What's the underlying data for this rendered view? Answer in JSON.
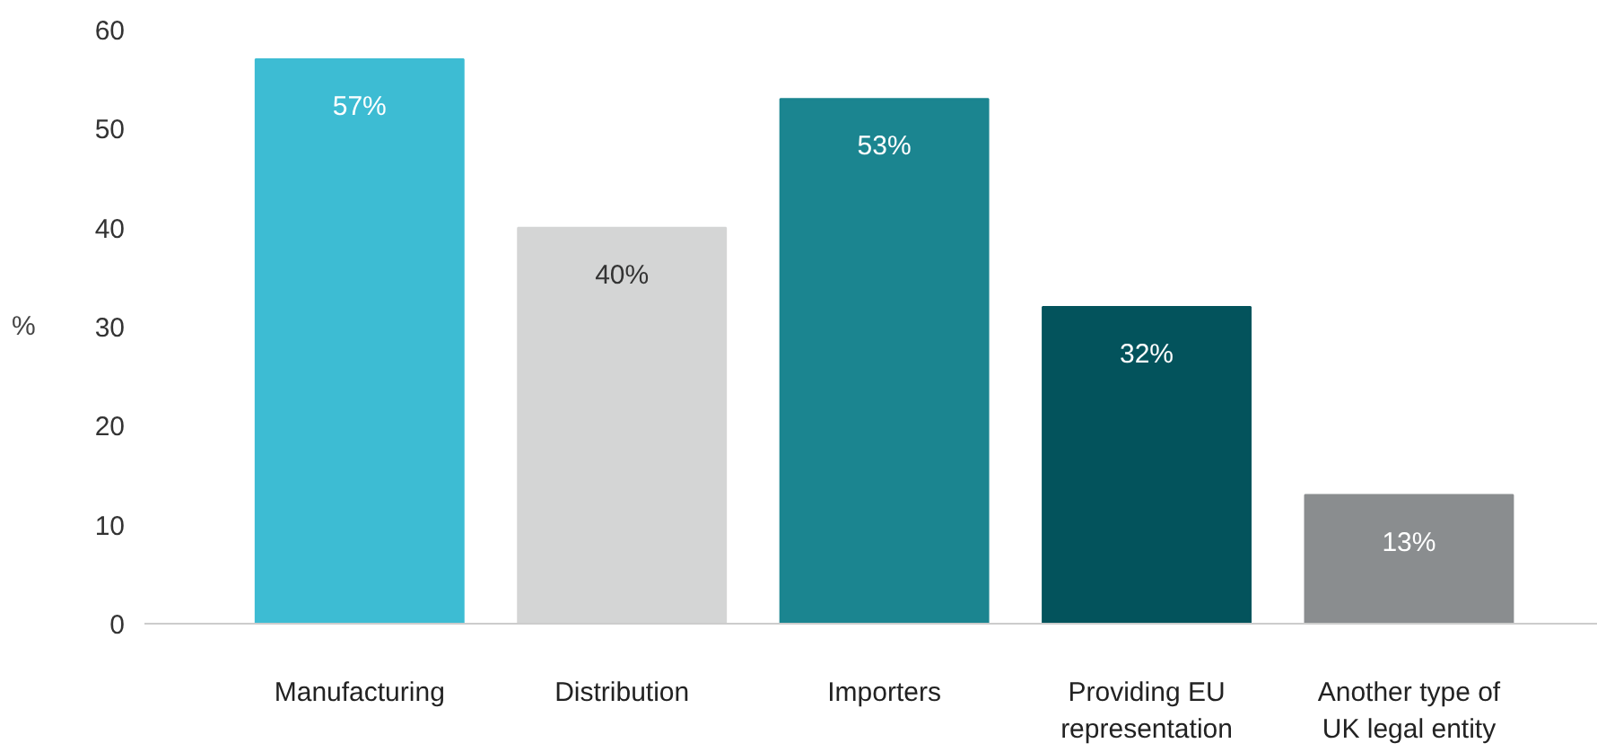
{
  "chart_data": {
    "type": "bar",
    "ylabel": "%",
    "categories": [
      "Manufacturing",
      "Distribution",
      "Importers",
      "Providing EU\nrepresentation",
      "Another type of\nUK legal entity"
    ],
    "values": [
      57,
      40,
      53,
      32,
      13
    ],
    "colors": [
      "#3dbcd3",
      "#d4d5d5",
      "#1b8590",
      "#03535c",
      "#8a8d8f"
    ],
    "value_labels": [
      "57%",
      "40%",
      "53%",
      "32%",
      "13%"
    ],
    "ylim": [
      0,
      60
    ],
    "yticks": [
      0,
      10,
      20,
      30,
      40,
      50,
      60
    ],
    "grid": false
  }
}
